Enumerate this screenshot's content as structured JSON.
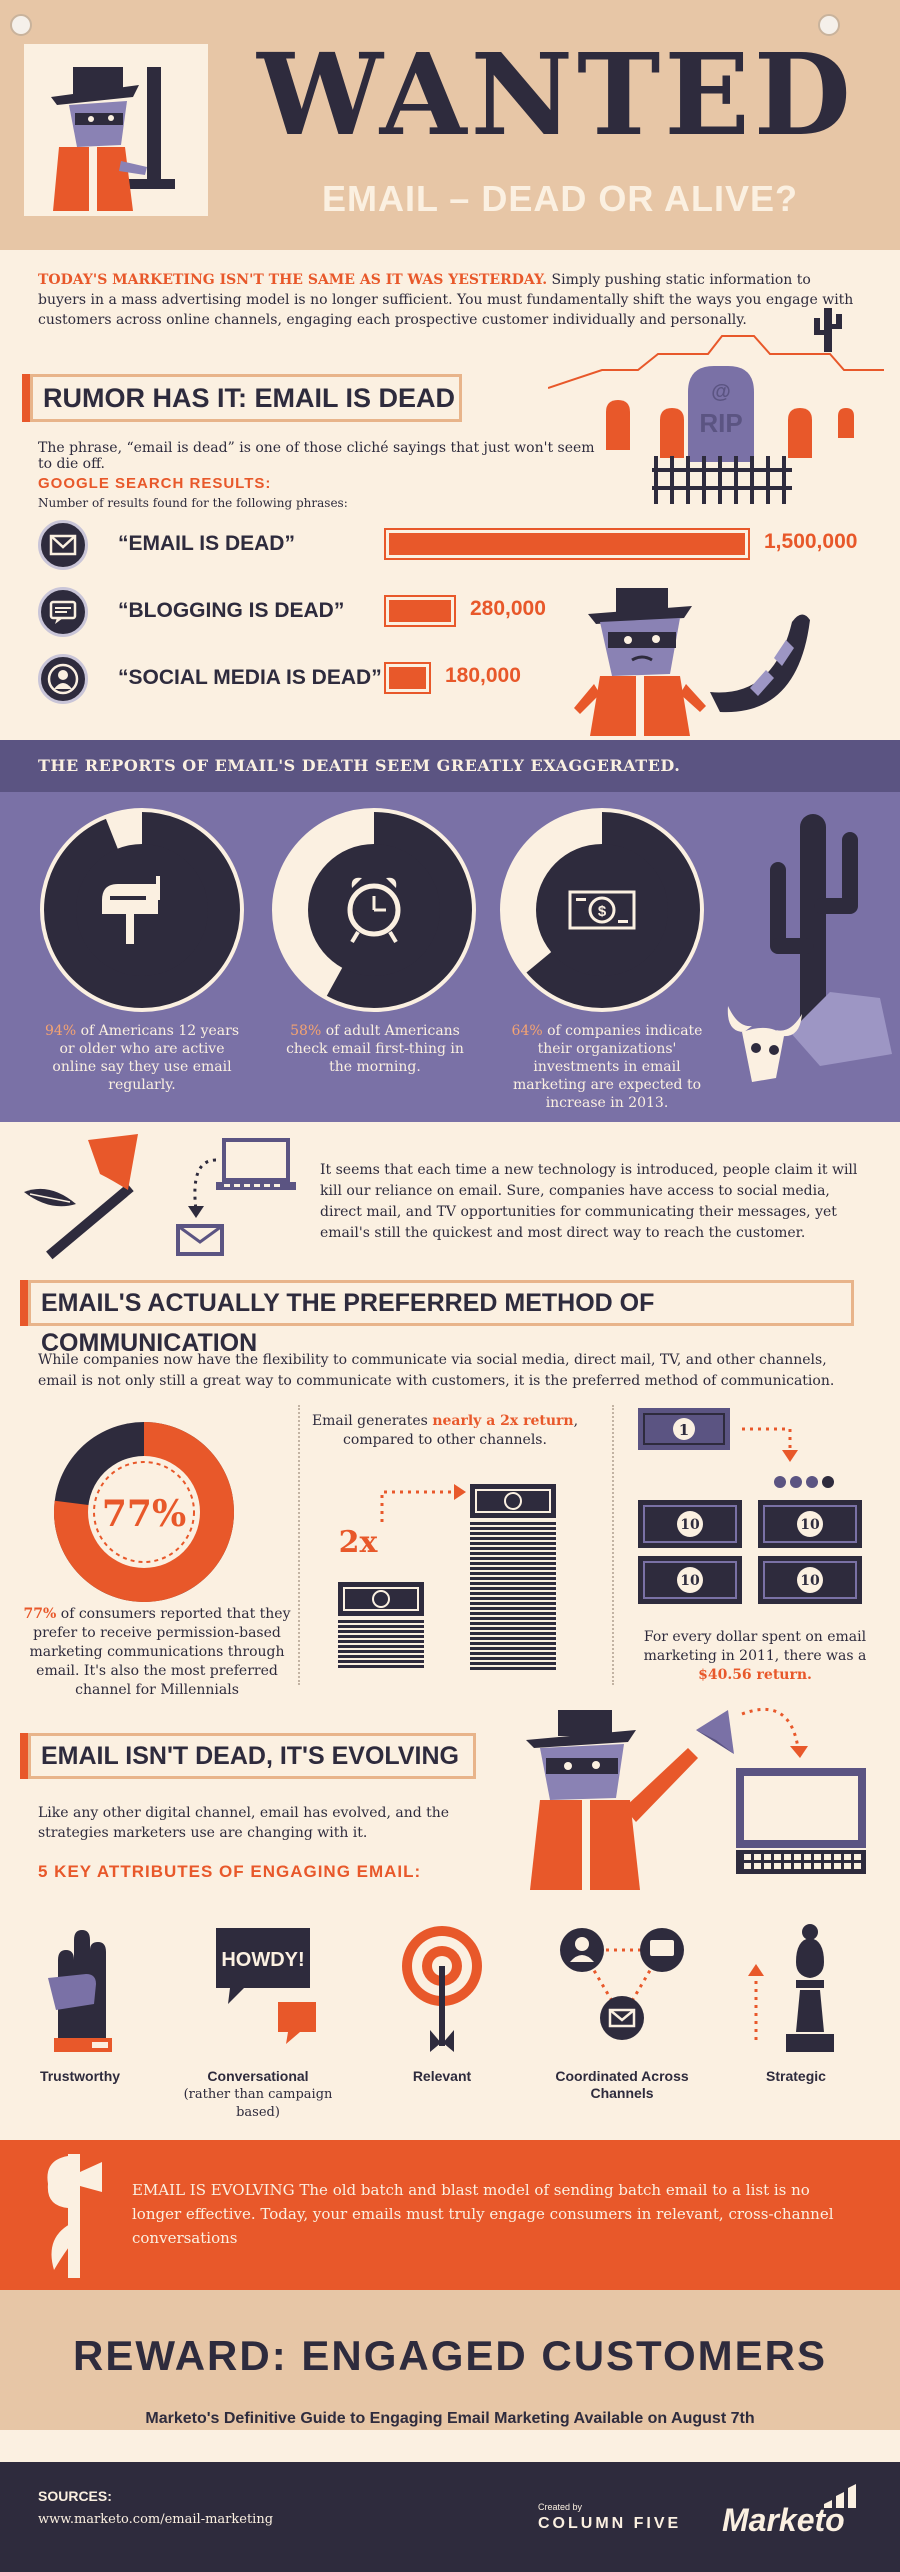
{
  "header": {
    "title": "WANTED",
    "subtitle": "EMAIL – DEAD OR ALIVE?"
  },
  "intro": {
    "lead": "TODAY'S MARKETING ISN'T THE SAME AS IT WAS YESTERDAY.",
    "body": " Simply pushing static information to buyers in a mass advertising model is no longer sufficient. You must fundamentally shift the ways you engage with customers across online channels, engaging each prospective customer individually and personally."
  },
  "rumor": {
    "title": "RUMOR HAS IT: EMAIL IS DEAD",
    "text": "The phrase, “email is dead” is one of those cliché sayings that just won't seem to die off.",
    "tombstone": "RIP",
    "tombstone_at": "@"
  },
  "google": {
    "title": "GOOGLE SEARCH RESULTS:",
    "subtitle": "Number of results found for the following phrases:",
    "phrases": [
      {
        "label": "“EMAIL IS DEAD”",
        "value": 1500000,
        "display": "1,500,000",
        "icon": "envelope-icon"
      },
      {
        "label": "“BLOGGING IS DEAD”",
        "value": 280000,
        "display": "280,000",
        "icon": "speech-bubble-icon"
      },
      {
        "label": "“SOCIAL MEDIA IS DEAD”",
        "value": 180000,
        "display": "180,000",
        "icon": "user-icon"
      }
    ]
  },
  "exaggerated": {
    "band": "THE REPORTS OF EMAIL'S DEATH SEEM GREATLY EXAGGERATED.",
    "stats": [
      {
        "pct": "94%",
        "fraction": 0.94,
        "text": " of Americans 12 years or older who are active online say they use email regularly.",
        "icon": "mailbox-icon"
      },
      {
        "pct": "58%",
        "fraction": 0.58,
        "text": " of adult Americans check email first-thing in the morning.",
        "icon": "alarm-clock-icon"
      },
      {
        "pct": "64%",
        "fraction": 0.64,
        "text": " of companies indicate their organizations' investments in email marketing are expected to increase in 2013.",
        "icon": "money-icon"
      }
    ]
  },
  "tech": {
    "text": "It seems that each time a new technology is introduced, people claim it will kill our reliance on email. Sure, companies have access to social media, direct mail, and TV opportunities for communicating their messages, yet email's still the quickest and most direct way to reach the customer."
  },
  "preferred": {
    "title": "EMAIL'S ACTUALLY THE PREFERRED METHOD OF COMMUNICATION",
    "text": "While companies now have the flexibility to communicate via social media, direct mail, TV, and other channels, email is not only still a great way to communicate with customers, it is the preferred method of communication.",
    "donut_pct": "77%",
    "donut_fraction": 0.77,
    "donut_caption_lead": "77%",
    "donut_caption": " of consumers reported that they prefer to receive permission-based marketing communications through email. It's also the most preferred channel for Millennials",
    "return_pre": "Email generates ",
    "return_bold": "nearly a 2x return",
    "return_post": ", compared to other channels.",
    "return_label": "2x",
    "dollar_text": "For every dollar spent on email marketing in 2011, there was a ",
    "dollar_bold": "$40.56 return.",
    "bill_one": "1",
    "bill_ten": "10"
  },
  "evolving": {
    "title": "EMAIL ISN'T DEAD, IT'S EVOLVING",
    "text": "Like any other digital channel, email has evolved, and the strategies marketers use are changing with it.",
    "attr_title": "5 KEY ATTRIBUTES OF ENGAGING EMAIL:",
    "howdy": "HOWDY!",
    "attributes": [
      {
        "label": "Trustworthy",
        "sub": ""
      },
      {
        "label": "Conversational",
        "sub": "(rather than campaign based)"
      },
      {
        "label": "Relevant",
        "sub": ""
      },
      {
        "label": "Coordinated Across Channels",
        "sub": ""
      },
      {
        "label": "Strategic",
        "sub": ""
      }
    ]
  },
  "band": {
    "text": "EMAIL IS EVOLVING The old batch and blast model of sending batch email to a list is no longer effective. Today, your emails must truly engage consumers in relevant, cross-channel conversations"
  },
  "reward": {
    "title": "REWARD: ENGAGED CUSTOMERS",
    "guide": "Marketo's Definitive Guide to Engaging Email Marketing Available on August 7th"
  },
  "footer": {
    "sources_label": "SOURCES:",
    "sources_url": "www.marketo.com/email-marketing",
    "created_by": "Created by",
    "agency": "COLUMN FIVE",
    "brand": "Marketo"
  },
  "colors": {
    "navy": "#2e2b3d",
    "orange": "#e8582a",
    "cream": "#fbf0e1",
    "tan": "#e7c6a6",
    "purple": "#7a71a6",
    "purple_dark": "#5b5482"
  }
}
